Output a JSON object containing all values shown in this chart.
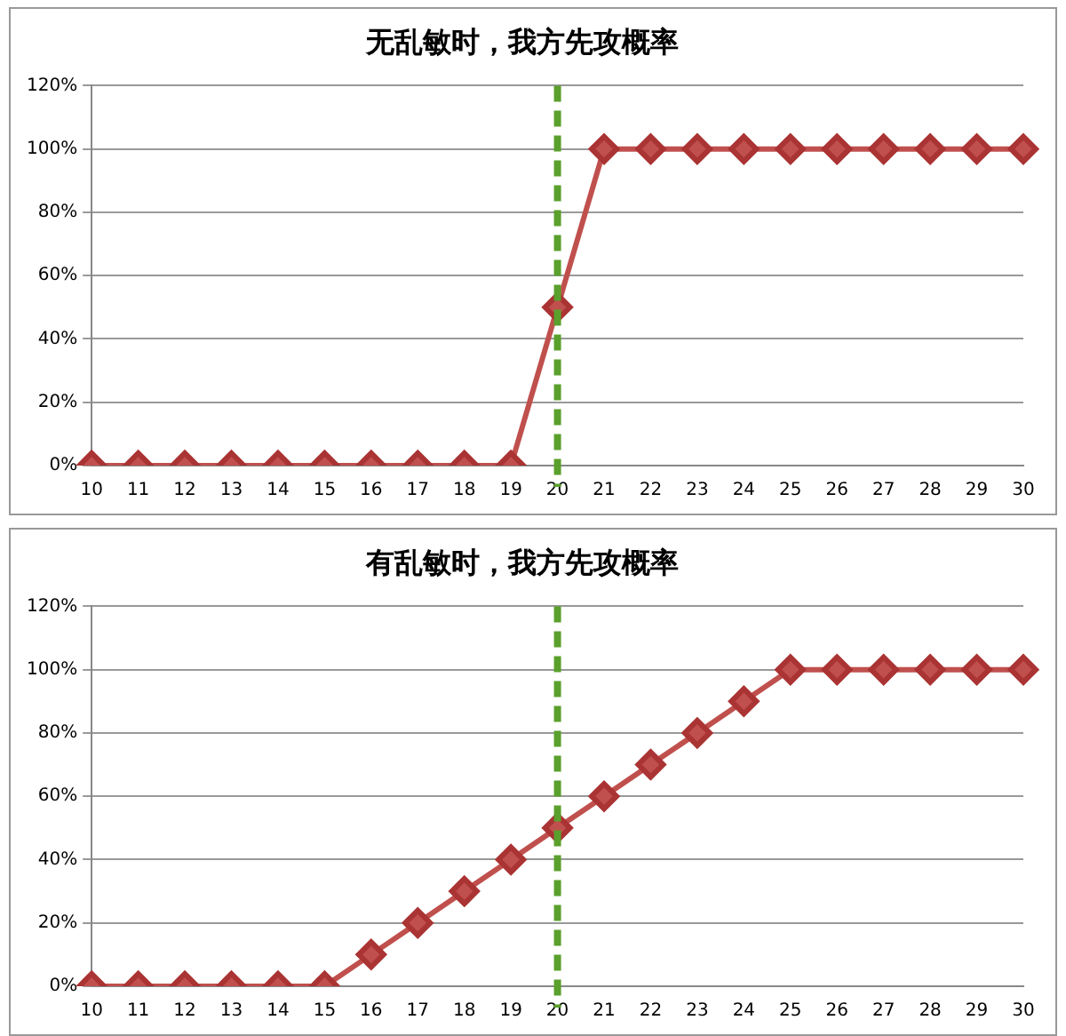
{
  "chart_data": [
    {
      "type": "line",
      "title": "无乱敏时，我方先攻概率",
      "categories": [
        "10",
        "11",
        "12",
        "13",
        "14",
        "15",
        "16",
        "17",
        "18",
        "19",
        "20",
        "21",
        "22",
        "23",
        "24",
        "25",
        "26",
        "27",
        "28",
        "29",
        "30"
      ],
      "values": [
        0,
        0,
        0,
        0,
        0,
        0,
        0,
        0,
        0,
        0,
        50,
        100,
        100,
        100,
        100,
        100,
        100,
        100,
        100,
        100,
        100
      ],
      "color": "#c0504d",
      "ylim": [
        0,
        120
      ],
      "yticks": [
        {
          "value": 0,
          "label": "0%"
        },
        {
          "value": 20,
          "label": "20%"
        },
        {
          "value": 40,
          "label": "40%"
        },
        {
          "value": 60,
          "label": "60%"
        },
        {
          "value": 80,
          "label": "80%"
        },
        {
          "value": 100,
          "label": "100%"
        },
        {
          "value": 120,
          "label": "120%"
        }
      ],
      "grid": "y",
      "legend": false,
      "marker": "diamond",
      "line_style": "solid",
      "ref_lines": [
        {
          "axis": "x",
          "value": "20",
          "color": "#5aa02c",
          "line_style": "dashed"
        }
      ]
    },
    {
      "type": "line",
      "title": "有乱敏时，我方先攻概率",
      "categories": [
        "10",
        "11",
        "12",
        "13",
        "14",
        "15",
        "16",
        "17",
        "18",
        "19",
        "20",
        "21",
        "22",
        "23",
        "24",
        "25",
        "26",
        "27",
        "28",
        "29",
        "30"
      ],
      "values": [
        0,
        0,
        0,
        0,
        0,
        0,
        10,
        20,
        30,
        40,
        50,
        60,
        70,
        80,
        90,
        100,
        100,
        100,
        100,
        100,
        100
      ],
      "color": "#c0504d",
      "ylim": [
        0,
        120
      ],
      "yticks": [
        {
          "value": 0,
          "label": "0%"
        },
        {
          "value": 20,
          "label": "20%"
        },
        {
          "value": 40,
          "label": "40%"
        },
        {
          "value": 60,
          "label": "60%"
        },
        {
          "value": 80,
          "label": "80%"
        },
        {
          "value": 100,
          "label": "100%"
        },
        {
          "value": 120,
          "label": "120%"
        }
      ],
      "grid": "y",
      "legend": false,
      "marker": "diamond",
      "line_style": "solid",
      "ref_lines": [
        {
          "axis": "x",
          "value": "20",
          "color": "#5aa02c",
          "line_style": "dashed"
        }
      ]
    }
  ]
}
